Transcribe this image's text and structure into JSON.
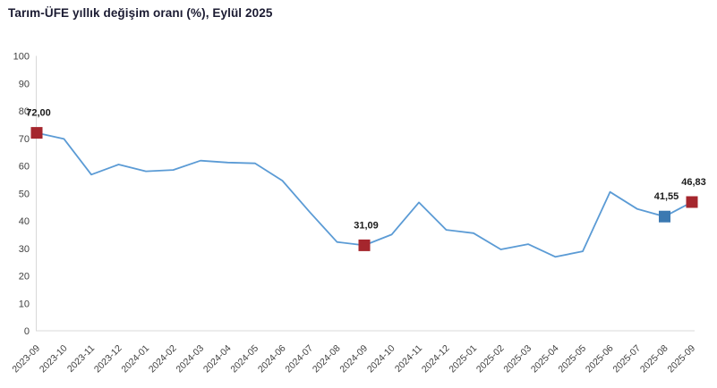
{
  "title": "Tarım-ÜFE yıllık değişim oranı (%), Eylül 2025",
  "colors": {
    "line": "#5b9bd5",
    "marker_red": "#a5262d",
    "marker_blue": "#3b79b1",
    "axis": "#d9d9d9",
    "tick_text": "#404040",
    "data_label_text": "#1a1a1a",
    "title_text": "#1b1b32"
  },
  "chart_data": {
    "type": "line",
    "title": "Tarım-ÜFE yıllık değişim oranı (%), Eylül 2025",
    "xlabel": "",
    "ylabel": "",
    "ylim": [
      0,
      100
    ],
    "yticks": [
      0,
      10,
      20,
      30,
      40,
      50,
      60,
      70,
      80,
      90,
      100
    ],
    "grid": false,
    "legend": false,
    "categories": [
      "2023-09",
      "2023-10",
      "2023-11",
      "2023-12",
      "2024-01",
      "2024-02",
      "2024-03",
      "2024-04",
      "2024-05",
      "2024-06",
      "2024-07",
      "2024-08",
      "2024-09",
      "2024-10",
      "2024-11",
      "2024-12",
      "2025-01",
      "2025-02",
      "2025-03",
      "2025-04",
      "2025-05",
      "2025-06",
      "2025-07",
      "2025-08",
      "2025-09"
    ],
    "values": [
      72.0,
      69.8,
      56.8,
      60.5,
      58.0,
      58.5,
      61.9,
      61.2,
      60.9,
      54.6,
      43.2,
      32.3,
      31.09,
      35.0,
      46.7,
      36.7,
      35.5,
      29.6,
      31.5,
      26.9,
      28.9,
      50.5,
      44.3,
      41.55,
      46.83
    ],
    "annotations": [
      {
        "x": "2023-09",
        "label": "72,00",
        "marker": "square",
        "marker_color": "#a5262d"
      },
      {
        "x": "2024-09",
        "label": "31,09",
        "marker": "square",
        "marker_color": "#a5262d"
      },
      {
        "x": "2025-08",
        "label": "41,55",
        "marker": "square",
        "marker_color": "#3b79b1"
      },
      {
        "x": "2025-09",
        "label": "46,83",
        "marker": "square",
        "marker_color": "#a5262d"
      }
    ]
  }
}
